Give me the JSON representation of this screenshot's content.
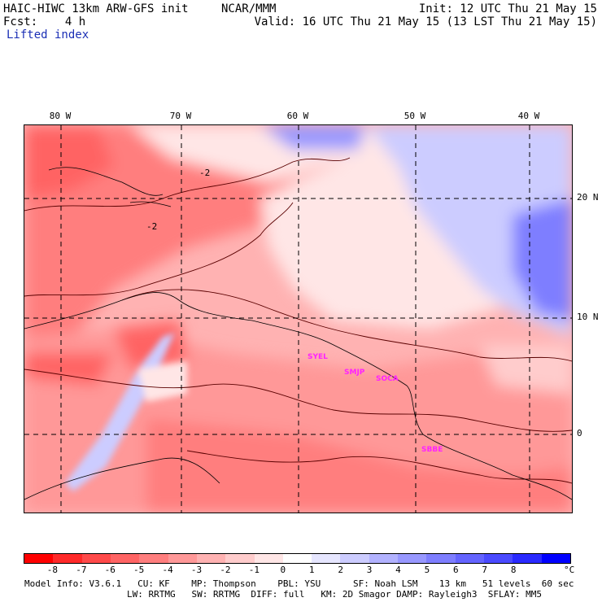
{
  "header": {
    "model_line": "HAIC-HIWC 13km ARW-GFS init",
    "org": "NCAR/MMM",
    "init": "Init: 12 UTC Thu 21 May 15",
    "fcst": "Fcst:    4 h",
    "valid": "Valid: 16 UTC Thu 21 May 15 (13 LST Thu 21 May 15)",
    "field": "Lifted index"
  },
  "map": {
    "lon_labels": [
      "80 W",
      "70 W",
      "60 W",
      "50 W",
      "40 W"
    ],
    "lat_labels": [
      "20 N",
      "10 N",
      "0"
    ],
    "contour_labels": [
      "-2",
      "-2"
    ],
    "stations": [
      "SYEL",
      "SMJP",
      "SOCA",
      "SBBE"
    ]
  },
  "colorbar": {
    "colors": [
      "#ff0000",
      "#ff2a2a",
      "#ff4a4a",
      "#ff6464",
      "#ff7e7e",
      "#ff9898",
      "#ffb2b2",
      "#ffcccc",
      "#ffe6e6",
      "#ffffff",
      "#e6e6ff",
      "#ccccff",
      "#b2b2ff",
      "#9898ff",
      "#7e7eff",
      "#6464ff",
      "#4a4aff",
      "#2a2aff",
      "#0000ff"
    ],
    "ticks": [
      "-8",
      "-7",
      "-6",
      "-5",
      "-4",
      "-3",
      "-2",
      "-1",
      "0",
      "1",
      "2",
      "3",
      "4",
      "5",
      "6",
      "7",
      "8"
    ],
    "unit": "°C"
  },
  "footer": {
    "line1": "Model Info: V3.6.1   CU: KF    MP: Thompson    PBL: YSU      SF: Noah LSM    13 km   51 levels  60 sec",
    "line2": "LW: RRTMG   SW: RRTMG  DIFF: full   KM: 2D Smagor DAMP: Rayleigh3  SFLAY: MM5"
  }
}
